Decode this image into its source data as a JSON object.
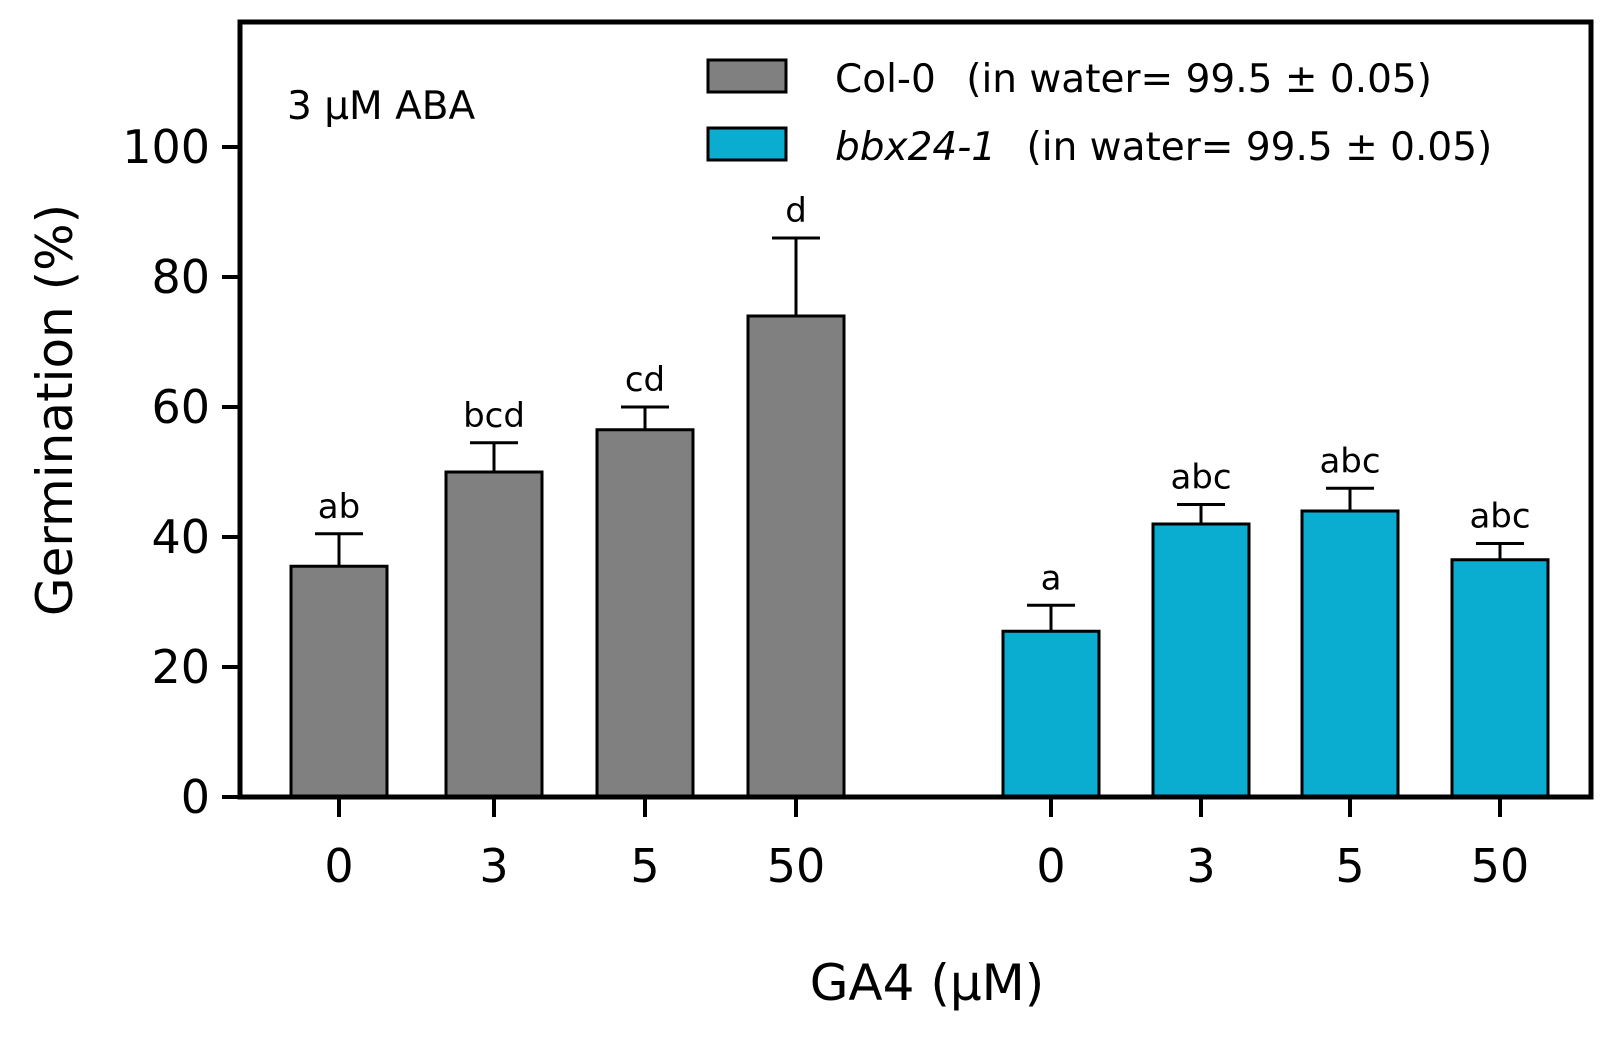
{
  "chart_data": {
    "type": "bar",
    "annotation": "3 μM ABA",
    "xlabel": "GA4 (μM)",
    "ylabel": "Germination (%)",
    "ylim": [
      0,
      118
    ],
    "yticks": [
      0,
      20,
      40,
      60,
      80,
      100
    ],
    "categories": [
      "0",
      "3",
      "5",
      "50"
    ],
    "colors": {
      "col0": "#808080",
      "bbx": "#0aaccf",
      "outline": "#000000"
    },
    "series": [
      {
        "key": "col0",
        "name": "Col-0",
        "legend_suffix": "(in water= 99.5 ± 0.05)",
        "values": [
          35.5,
          50,
          56.5,
          74
        ],
        "errors": [
          5,
          4.5,
          3.5,
          12
        ],
        "significance": [
          "ab",
          "bcd",
          "cd",
          "d"
        ]
      },
      {
        "key": "bbx",
        "name": "bbx24-1",
        "legend_suffix": "(in water= 99.5 ± 0.05)",
        "values": [
          25.5,
          42,
          44,
          36.5
        ],
        "errors": [
          4,
          3,
          3.5,
          2.5
        ],
        "significance": [
          "a",
          "abc",
          "abc",
          "abc"
        ]
      }
    ]
  }
}
